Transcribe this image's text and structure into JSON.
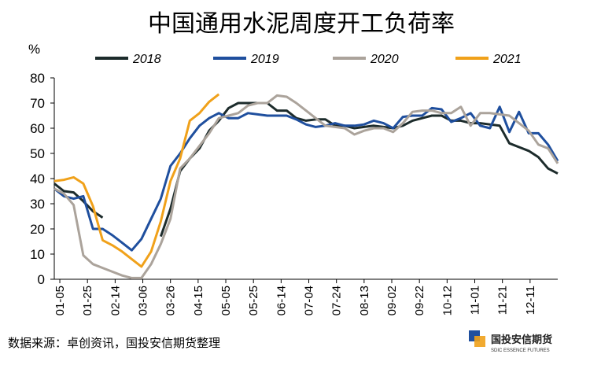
{
  "chart_data": {
    "type": "line",
    "title": "中国通用水泥周度开工负荷率",
    "ylabel": "%",
    "xlabel": "",
    "ylim": [
      0,
      80
    ],
    "yticks": [
      0,
      10,
      20,
      30,
      40,
      50,
      60,
      70,
      80
    ],
    "xlim": [
      1,
      365
    ],
    "grid": false,
    "legend_position": "top",
    "xtick_labels": [
      "01-05",
      "01-25",
      "02-14",
      "03-06",
      "03-26",
      "04-15",
      "05-05",
      "05-25",
      "06-14",
      "07-04",
      "07-24",
      "08-13",
      "09-02",
      "09-22",
      "10-12",
      "11-01",
      "11-21",
      "12-11"
    ],
    "xtick_days": [
      5,
      25,
      45,
      65,
      85,
      105,
      125,
      145,
      165,
      185,
      205,
      225,
      245,
      265,
      285,
      305,
      325,
      345
    ],
    "series": [
      {
        "name": "2018",
        "color": "#1c2b2b",
        "segments": [
          [
            [
              1,
              38
            ],
            [
              8,
              35
            ],
            [
              15,
              34.5
            ],
            [
              22,
              31
            ],
            [
              29,
              27
            ],
            [
              36,
              24.5
            ]
          ],
          [
            [
              78,
              17
            ],
            [
              85,
              28
            ],
            [
              92,
              43
            ],
            [
              99,
              48
            ],
            [
              106,
              52
            ],
            [
              113,
              59
            ],
            [
              120,
              63
            ],
            [
              127,
              68
            ],
            [
              134,
              70
            ],
            [
              141,
              70
            ],
            [
              148,
              70
            ],
            [
              155,
              70
            ],
            [
              162,
              67
            ],
            [
              169,
              67
            ],
            [
              176,
              64
            ],
            [
              183,
              63
            ],
            [
              190,
              63.5
            ],
            [
              197,
              63.5
            ],
            [
              204,
              61
            ],
            [
              211,
              61
            ],
            [
              218,
              60
            ],
            [
              225,
              60.5
            ],
            [
              232,
              61
            ],
            [
              239,
              60.5
            ],
            [
              246,
              60
            ],
            [
              253,
              61
            ],
            [
              260,
              63
            ],
            [
              267,
              64
            ],
            [
              274,
              65
            ],
            [
              281,
              65
            ],
            [
              288,
              63
            ],
            [
              295,
              63
            ],
            [
              302,
              62
            ],
            [
              309,
              62
            ],
            [
              316,
              61.5
            ],
            [
              323,
              61
            ],
            [
              330,
              54
            ],
            [
              337,
              52.5
            ],
            [
              344,
              51
            ],
            [
              351,
              48.5
            ],
            [
              358,
              44
            ],
            [
              365,
              42
            ]
          ]
        ]
      },
      {
        "name": "2019",
        "color": "#1f4f9e",
        "segments": [
          [
            [
              1,
              36
            ],
            [
              8,
              33
            ],
            [
              15,
              32
            ],
            [
              22,
              33
            ],
            [
              29,
              20
            ],
            [
              36,
              20
            ],
            [
              43,
              17.5
            ],
            [
              50,
              14.5
            ],
            [
              57,
              11.5
            ],
            [
              64,
              16
            ],
            [
              71,
              24
            ],
            [
              78,
              32
            ],
            [
              85,
              45
            ],
            [
              92,
              50
            ],
            [
              99,
              56
            ],
            [
              106,
              61
            ],
            [
              113,
              64
            ],
            [
              120,
              66
            ],
            [
              127,
              64
            ],
            [
              134,
              64
            ],
            [
              141,
              66
            ],
            [
              148,
              65.5
            ],
            [
              155,
              65
            ],
            [
              162,
              65
            ],
            [
              169,
              65
            ],
            [
              176,
              63.5
            ],
            [
              183,
              61.5
            ],
            [
              190,
              60.5
            ],
            [
              197,
              61
            ],
            [
              204,
              62
            ],
            [
              211,
              61
            ],
            [
              218,
              61
            ],
            [
              225,
              61.5
            ],
            [
              232,
              63
            ],
            [
              239,
              62
            ],
            [
              246,
              60
            ],
            [
              253,
              64.5
            ],
            [
              260,
              65
            ],
            [
              267,
              65
            ],
            [
              274,
              68
            ],
            [
              281,
              67.5
            ],
            [
              288,
              62.5
            ],
            [
              295,
              64
            ],
            [
              302,
              66
            ],
            [
              309,
              61
            ],
            [
              316,
              60
            ],
            [
              323,
              68.5
            ],
            [
              330,
              58.5
            ],
            [
              337,
              66.5
            ],
            [
              344,
              58
            ],
            [
              351,
              58
            ],
            [
              358,
              53.5
            ],
            [
              365,
              47
            ]
          ]
        ]
      },
      {
        "name": "2020",
        "color": "#aba39b",
        "segments": [
          [
            [
              1,
              36
            ],
            [
              8,
              34
            ],
            [
              15,
              29.5
            ],
            [
              22,
              9.5
            ],
            [
              29,
              6
            ],
            [
              36,
              4.5
            ],
            [
              43,
              3
            ],
            [
              50,
              1.5
            ],
            [
              57,
              0.5
            ],
            [
              64,
              0.5
            ],
            [
              71,
              6
            ],
            [
              78,
              14
            ],
            [
              85,
              24
            ],
            [
              92,
              44
            ],
            [
              99,
              48
            ],
            [
              106,
              53
            ],
            [
              113,
              58
            ],
            [
              120,
              64
            ],
            [
              127,
              65
            ],
            [
              134,
              66
            ],
            [
              141,
              69
            ],
            [
              148,
              70
            ],
            [
              155,
              70
            ],
            [
              162,
              73
            ],
            [
              169,
              72.5
            ],
            [
              176,
              70
            ],
            [
              183,
              67
            ],
            [
              190,
              64
            ],
            [
              197,
              61
            ],
            [
              204,
              60.5
            ],
            [
              211,
              60
            ],
            [
              218,
              57.5
            ],
            [
              225,
              59
            ],
            [
              232,
              60
            ],
            [
              239,
              60
            ],
            [
              246,
              58.5
            ],
            [
              253,
              62
            ],
            [
              260,
              66.5
            ],
            [
              267,
              67
            ],
            [
              274,
              67
            ],
            [
              281,
              66
            ],
            [
              288,
              66
            ],
            [
              295,
              68.5
            ],
            [
              302,
              61
            ],
            [
              309,
              66
            ],
            [
              316,
              66
            ],
            [
              323,
              65.5
            ],
            [
              330,
              65
            ],
            [
              337,
              62
            ],
            [
              344,
              59
            ],
            [
              351,
              53.5
            ],
            [
              358,
              52
            ],
            [
              365,
              46
            ]
          ]
        ]
      },
      {
        "name": "2021",
        "color": "#f0a11a",
        "segments": [
          [
            [
              1,
              39
            ],
            [
              8,
              39.5
            ],
            [
              15,
              40.5
            ],
            [
              22,
              38
            ],
            [
              29,
              29
            ],
            [
              36,
              15.5
            ],
            [
              43,
              13.5
            ],
            [
              50,
              11
            ],
            [
              57,
              8
            ],
            [
              64,
              5
            ],
            [
              71,
              11
            ],
            [
              78,
              23
            ],
            [
              85,
              39
            ],
            [
              92,
              48
            ],
            [
              99,
              63
            ],
            [
              106,
              66
            ],
            [
              113,
              70.5
            ],
            [
              120,
              73.5
            ]
          ]
        ]
      }
    ],
    "source": "数据来源：卓创资讯，国投安信期货整理",
    "logo": {
      "name_cn": "国投安信期货",
      "name_en": "SDIC ESSENCE FUTURES"
    }
  }
}
